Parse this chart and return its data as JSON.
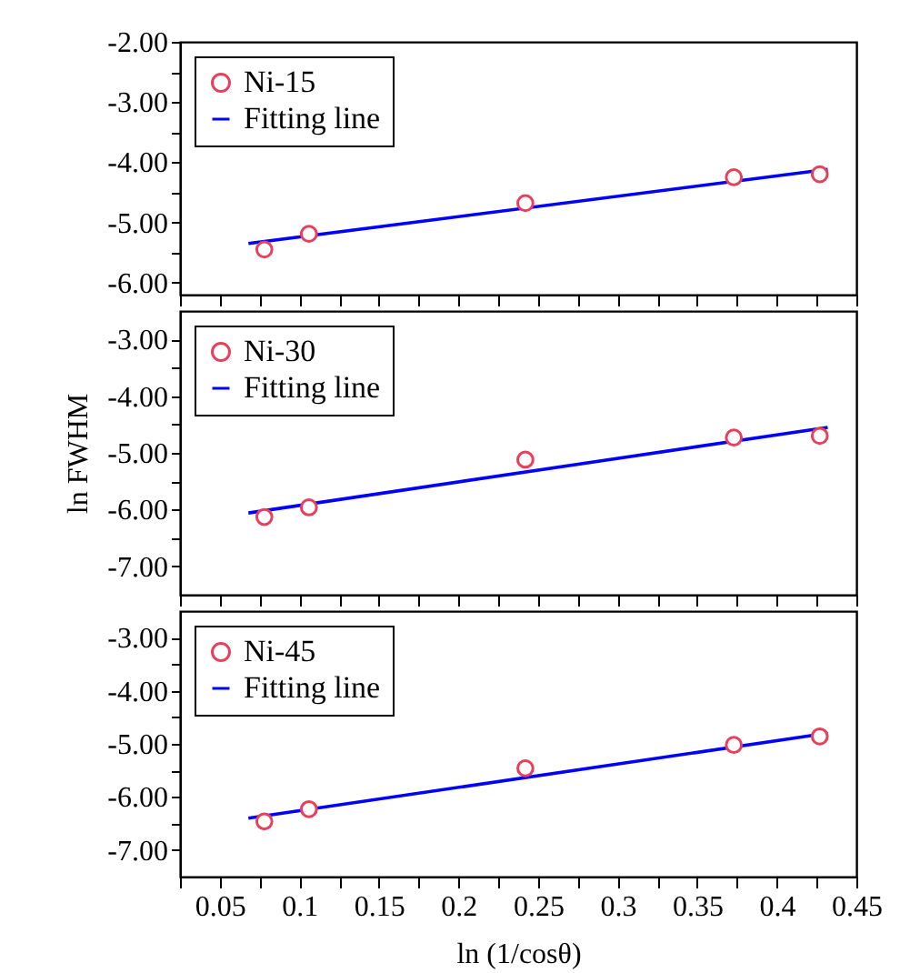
{
  "chart_data": [
    {
      "type": "scatter",
      "legend": "top left",
      "grid": false,
      "tick_labels": "y",
      "xlim": [
        0.025,
        0.45
      ],
      "ylim": [
        -6.2,
        -2
      ],
      "xticks": [
        {
          "value": 0.025,
          "label": null
        },
        0.05,
        {
          "value": 0.075,
          "label": null
        },
        0.1,
        {
          "value": 0.125,
          "label": null
        },
        0.15,
        {
          "value": 0.175,
          "label": null
        },
        0.2,
        {
          "value": 0.225,
          "label": null
        },
        0.25,
        {
          "value": 0.275,
          "label": null
        },
        0.3,
        {
          "value": 0.325,
          "label": null
        },
        0.35,
        {
          "value": 0.375,
          "label": null
        },
        0.4,
        {
          "value": 0.425,
          "label": null
        },
        0.45
      ],
      "yticks": [
        {
          "value": -2,
          "label": "-2.00"
        },
        {
          "value": -2.5,
          "label": null
        },
        {
          "value": -3,
          "label": "-3.00"
        },
        {
          "value": -3.5,
          "label": null
        },
        {
          "value": -4,
          "label": "-4.00"
        },
        {
          "value": -4.5,
          "label": null
        },
        {
          "value": -5,
          "label": "-5.00"
        },
        {
          "value": -5.5,
          "label": null
        },
        {
          "value": -6,
          "label": "-6.00"
        }
      ],
      "series": [
        {
          "name": "Ni-15",
          "type": "scatter",
          "marker": "circle",
          "color": "#e8405a",
          "x": [
            0.078,
            0.106,
            0.242,
            0.373,
            0.427
          ],
          "values": [
            -5.45,
            -5.19,
            -4.68,
            -4.25,
            -4.2
          ]
        },
        {
          "name": "Fitting line",
          "type": "line",
          "line_style": "solid",
          "color": "#0000ff",
          "x": [
            0.068,
            0.432
          ],
          "values": [
            -5.35,
            -4.12
          ]
        }
      ]
    },
    {
      "type": "scatter",
      "legend": "top left",
      "grid": false,
      "tick_labels": "y",
      "ylabel": "ln FWHM",
      "xlim": [
        0.025,
        0.45
      ],
      "ylim": [
        -7.5,
        -2.5
      ],
      "xticks": [
        {
          "value": 0.025,
          "label": null
        },
        0.05,
        {
          "value": 0.075,
          "label": null
        },
        0.1,
        {
          "value": 0.125,
          "label": null
        },
        0.15,
        {
          "value": 0.175,
          "label": null
        },
        0.2,
        {
          "value": 0.225,
          "label": null
        },
        0.25,
        {
          "value": 0.275,
          "label": null
        },
        0.3,
        {
          "value": 0.325,
          "label": null
        },
        0.35,
        {
          "value": 0.375,
          "label": null
        },
        0.4,
        {
          "value": 0.425,
          "label": null
        },
        0.45
      ],
      "yticks": [
        {
          "value": -3,
          "label": "-3.00"
        },
        {
          "value": -3.5,
          "label": null
        },
        {
          "value": -4,
          "label": "-4.00"
        },
        {
          "value": -4.5,
          "label": null
        },
        {
          "value": -5,
          "label": "-5.00"
        },
        {
          "value": -5.5,
          "label": null
        },
        {
          "value": -6,
          "label": "-6.00"
        },
        {
          "value": -6.5,
          "label": null
        },
        {
          "value": -7,
          "label": "-7.00"
        }
      ],
      "series": [
        {
          "name": "Ni-30",
          "type": "scatter",
          "marker": "circle",
          "color": "#e8405a",
          "x": [
            0.078,
            0.106,
            0.242,
            0.373,
            0.427
          ],
          "values": [
            -6.13,
            -5.96,
            -5.12,
            -4.73,
            -4.7
          ]
        },
        {
          "name": "Fitting line",
          "type": "line",
          "line_style": "solid",
          "color": "#0000ff",
          "x": [
            0.068,
            0.432
          ],
          "values": [
            -6.06,
            -4.55
          ]
        }
      ]
    },
    {
      "type": "scatter",
      "legend": "top left",
      "grid": false,
      "xlabel": "ln (1/cosθ)",
      "xlim": [
        0.025,
        0.45
      ],
      "ylim": [
        -7.5,
        -2.5
      ],
      "xticks": [
        {
          "value": 0.025,
          "label": null
        },
        0.05,
        {
          "value": 0.075,
          "label": null
        },
        0.1,
        {
          "value": 0.125,
          "label": null
        },
        0.15,
        {
          "value": 0.175,
          "label": null
        },
        0.2,
        {
          "value": 0.225,
          "label": null
        },
        0.25,
        {
          "value": 0.275,
          "label": null
        },
        0.3,
        {
          "value": 0.325,
          "label": null
        },
        0.35,
        {
          "value": 0.375,
          "label": null
        },
        0.4,
        {
          "value": 0.425,
          "label": null
        },
        0.45
      ],
      "yticks": [
        {
          "value": -3,
          "label": "-3.00"
        },
        {
          "value": -3.5,
          "label": null
        },
        {
          "value": -4,
          "label": "-4.00"
        },
        {
          "value": -4.5,
          "label": null
        },
        {
          "value": -5,
          "label": "-5.00"
        },
        {
          "value": -5.5,
          "label": null
        },
        {
          "value": -6,
          "label": "-6.00"
        },
        {
          "value": -6.5,
          "label": null
        },
        {
          "value": -7,
          "label": "-7.00"
        }
      ],
      "series": [
        {
          "name": "Ni-45",
          "type": "scatter",
          "marker": "circle",
          "color": "#e8405a",
          "x": [
            0.078,
            0.106,
            0.242,
            0.373,
            0.427
          ],
          "values": [
            -6.46,
            -6.23,
            -5.46,
            -5.02,
            -4.86
          ]
        },
        {
          "name": "Fitting line",
          "type": "line",
          "line_style": "solid",
          "color": "#0000ff",
          "x": [
            0.068,
            0.432
          ],
          "values": [
            -6.4,
            -4.8
          ]
        }
      ]
    }
  ]
}
